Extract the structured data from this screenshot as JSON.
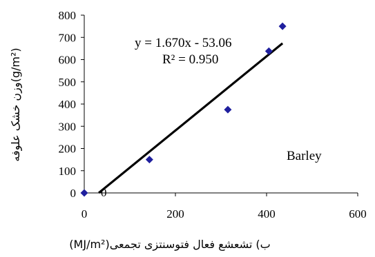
{
  "chart_data": {
    "type": "scatter",
    "xlabel": "ب) تشعشع فعال فتوسنتزی تجمعی(MJ/m²)",
    "ylabel": "وزن خشک علوفه(g/m²)",
    "xlim": [
      0,
      600
    ],
    "ylim": [
      0,
      800
    ],
    "xticks": [
      0,
      200,
      400,
      600
    ],
    "yticks": [
      0,
      100,
      200,
      300,
      400,
      500,
      600,
      700,
      800
    ],
    "points": [
      {
        "x": 0,
        "y": 0
      },
      {
        "x": 143,
        "y": 150
      },
      {
        "x": 315,
        "y": 375
      },
      {
        "x": 405,
        "y": 638
      },
      {
        "x": 435,
        "y": 750
      }
    ],
    "trendline": {
      "slope": 1.67,
      "intercept": -53.06,
      "x_range": [
        32,
        435
      ]
    },
    "equation": "y = 1.670x - 53.06",
    "r_squared": "R² = 0.950",
    "annotation": "Barley",
    "extra_label": "0",
    "grid": false,
    "marker_color": "#1f1f9e",
    "line_color": "#000000"
  }
}
